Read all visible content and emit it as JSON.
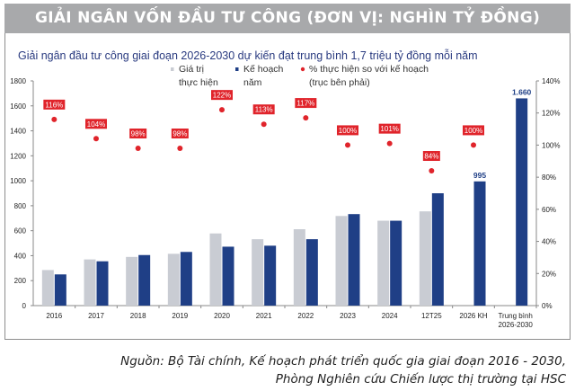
{
  "chart_data": {
    "type": "bar",
    "title": "GIẢI NGÂN VỐN ĐẦU TƯ CÔNG (ĐƠN VỊ: NGHÌN TỶ ĐỒNG)",
    "subtitle": "Giải ngân đầu tư công giai đoạn 2026-2030 dự kiến đạt trung bình 1,7 triệu tỷ đồng mỗi năm",
    "categories": [
      "2016",
      "2017",
      "2018",
      "2019",
      "2020",
      "2021",
      "2022",
      "2023",
      "2024",
      "12T25",
      "2026 KH",
      "Trung bình 2026-2030"
    ],
    "series": [
      {
        "name": "Giá trị thực hiện",
        "legend_lines": [
          "Giá trị",
          "thực hiện"
        ],
        "color": "#c9ccd3",
        "values": [
          285,
          370,
          390,
          415,
          578,
          532,
          612,
          718,
          680,
          755,
          null,
          null
        ]
      },
      {
        "name": "Kế hoạch năm",
        "legend_lines": [
          "Kế hoạch",
          "năm"
        ],
        "color": "#1f3f86",
        "values": [
          250,
          355,
          405,
          430,
          472,
          480,
          532,
          733,
          680,
          900,
          995,
          1660
        ]
      },
      {
        "name": "% thực hiện so với kế hoạch (trục bên phải)",
        "legend_lines": [
          "% thực hiện so với kế hoạch",
          "(trục bên phải)"
        ],
        "color": "#e0242b",
        "axis": "right",
        "values": [
          116,
          104,
          98,
          98,
          122,
          113,
          117,
          100,
          101,
          84,
          100,
          null
        ]
      }
    ],
    "data_labels": {
      "pct": [
        "116%",
        "104%",
        "98%",
        "98%",
        "122%",
        "113%",
        "117%",
        "100%",
        "101%",
        "84%",
        "100%"
      ],
      "bar": {
        "2026 KH": "995",
        "Trung bình 2026-2030": "1.660"
      }
    },
    "ylim": [
      0,
      1800
    ],
    "yticks": [
      "0",
      "200",
      "400",
      "600",
      "800",
      "1000",
      "1200",
      "1400",
      "1600",
      "1800"
    ],
    "y2lim": [
      0,
      140
    ],
    "y2ticks": [
      "0%",
      "20%",
      "40%",
      "60%",
      "80%",
      "100%",
      "120%",
      "140%"
    ],
    "legend": "top-center",
    "grid": false
  },
  "source": {
    "line1": "Nguồn: Bộ Tài chính, Kế hoạch phát triển quốc gia giai đoạn 2016 - 2030,",
    "line2": "Phòng Nghiên cứu Chiến lược thị trường tại HSC"
  }
}
